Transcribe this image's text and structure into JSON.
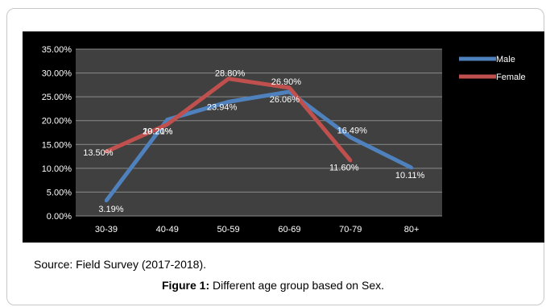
{
  "chart_data": {
    "type": "line",
    "categories": [
      "30-39",
      "40-49",
      "50-59",
      "60-69",
      "70-79",
      "80+"
    ],
    "y_ticks": [
      "0.00%",
      "5.00%",
      "10.00%",
      "15.00%",
      "20.00%",
      "25.00%",
      "30.00%",
      "35.00%"
    ],
    "ylim": [
      0,
      35
    ],
    "grid": true,
    "legend_position": "right",
    "series": [
      {
        "name": "Male",
        "color": "#4f81bd",
        "values": [
          3.19,
          20.21,
          23.94,
          26.06,
          16.49,
          10.11
        ],
        "labels": [
          "3.19%",
          "20.21%",
          "23.94%",
          "26.06%",
          "16.49%",
          "10.11%"
        ]
      },
      {
        "name": "Female",
        "color": "#c0504d",
        "values": [
          13.5,
          19.2,
          28.8,
          26.9,
          11.6,
          null
        ],
        "labels": [
          "13.50%",
          "19.20%",
          "28.80%",
          "26.90%",
          "11.60%",
          null
        ]
      }
    ]
  },
  "source_text": "Source: Field Survey (2017-2018).",
  "caption": {
    "label": "Figure 1:",
    "text": " Different age group based on Sex."
  }
}
